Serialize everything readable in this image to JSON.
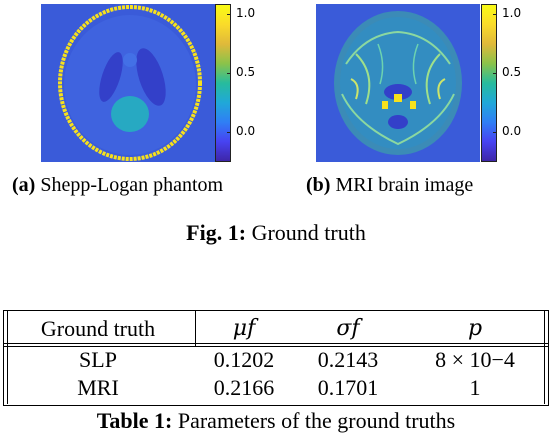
{
  "figures": [
    {
      "label": "(a)",
      "caption": "Shepp-Logan phantom",
      "colorbar_ticks": [
        "1.0",
        "0.5",
        "0.0"
      ]
    },
    {
      "label": "(b)",
      "caption": "MRI brain image",
      "colorbar_ticks": [
        "1.0",
        "0.5",
        "0.0"
      ]
    }
  ],
  "fig_caption": {
    "label": "Fig. 1:",
    "text": "Ground truth"
  },
  "table": {
    "headers": [
      "Ground truth",
      "μf",
      "σf",
      "p"
    ],
    "rows": [
      [
        "SLP",
        "0.1202",
        "0.2143",
        "8 × 10−4"
      ],
      [
        "MRI",
        "0.2166",
        "0.1701",
        "1"
      ]
    ],
    "caption_label": "Table 1:",
    "caption_text": "Parameters of the ground truths"
  },
  "colors": {
    "background_blue": "#3a5bd9",
    "ellipse_cyan": "#27a9c2",
    "outer_yellow": "#f7e11c",
    "brain_teal": "#3db39a",
    "colormap": [
      "#3e26a8",
      "#4743f2",
      "#2f7ff5",
      "#20a8d8",
      "#27bc9d",
      "#8bc34a",
      "#e0b93a",
      "#fadb2a",
      "#f9fb14"
    ]
  }
}
